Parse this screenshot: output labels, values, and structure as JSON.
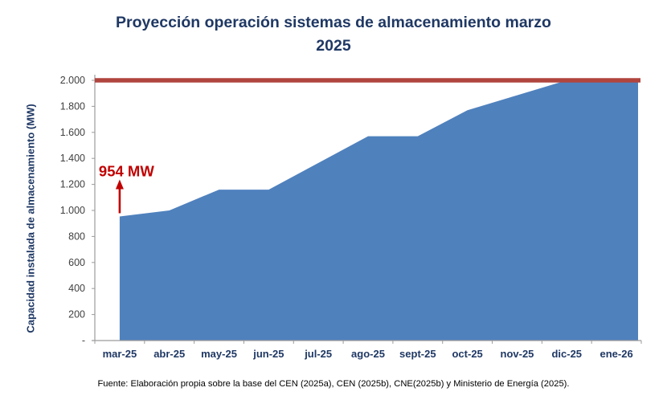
{
  "page": {
    "background": "#ffffff"
  },
  "title": {
    "lines": [
      "Proyección operación sistemas de almacenamiento marzo",
      "2025"
    ],
    "color": "#1f3864"
  },
  "footer": {
    "source": "Fuente: Elaboración propia sobre la base del CEN (2025a), CEN (2025b), CNE(2025b)  y Ministerio de Energía (2025)."
  },
  "chart_data": {
    "type": "area",
    "title": "Proyección operación sistemas de almacenamiento marzo 2025",
    "ylabel": "Capacidad instalada de almacenamiento (MW)",
    "categories": [
      "mar-25",
      "abr-25",
      "may-25",
      "jun-25",
      "jul-25",
      "ago-25",
      "sept-25",
      "oct-25",
      "nov-25",
      "dic-25",
      "ene-26"
    ],
    "values": [
      954,
      1000,
      1160,
      1160,
      1365,
      1570,
      1570,
      1770,
      1885,
      2000,
      2000
    ],
    "ylim": [
      0,
      2000
    ],
    "ytick_step": 200,
    "ytick_labels": [
      "-",
      "200",
      "400",
      "600",
      "800",
      "1.000",
      "1.200",
      "1.400",
      "1.600",
      "1.800",
      "2.000"
    ],
    "reference_line": {
      "value": 2000,
      "color": "#b0453e",
      "width": 5.5
    },
    "annotation": {
      "label": "954 MW",
      "category": "mar-25",
      "value": 954,
      "color": "#c00000"
    },
    "area_color": "#4f81bd",
    "axis_color": "#9b9b9b",
    "tick_label_color": "#404040",
    "category_label_color": "#1f3864",
    "grid": false,
    "legend": "none"
  }
}
